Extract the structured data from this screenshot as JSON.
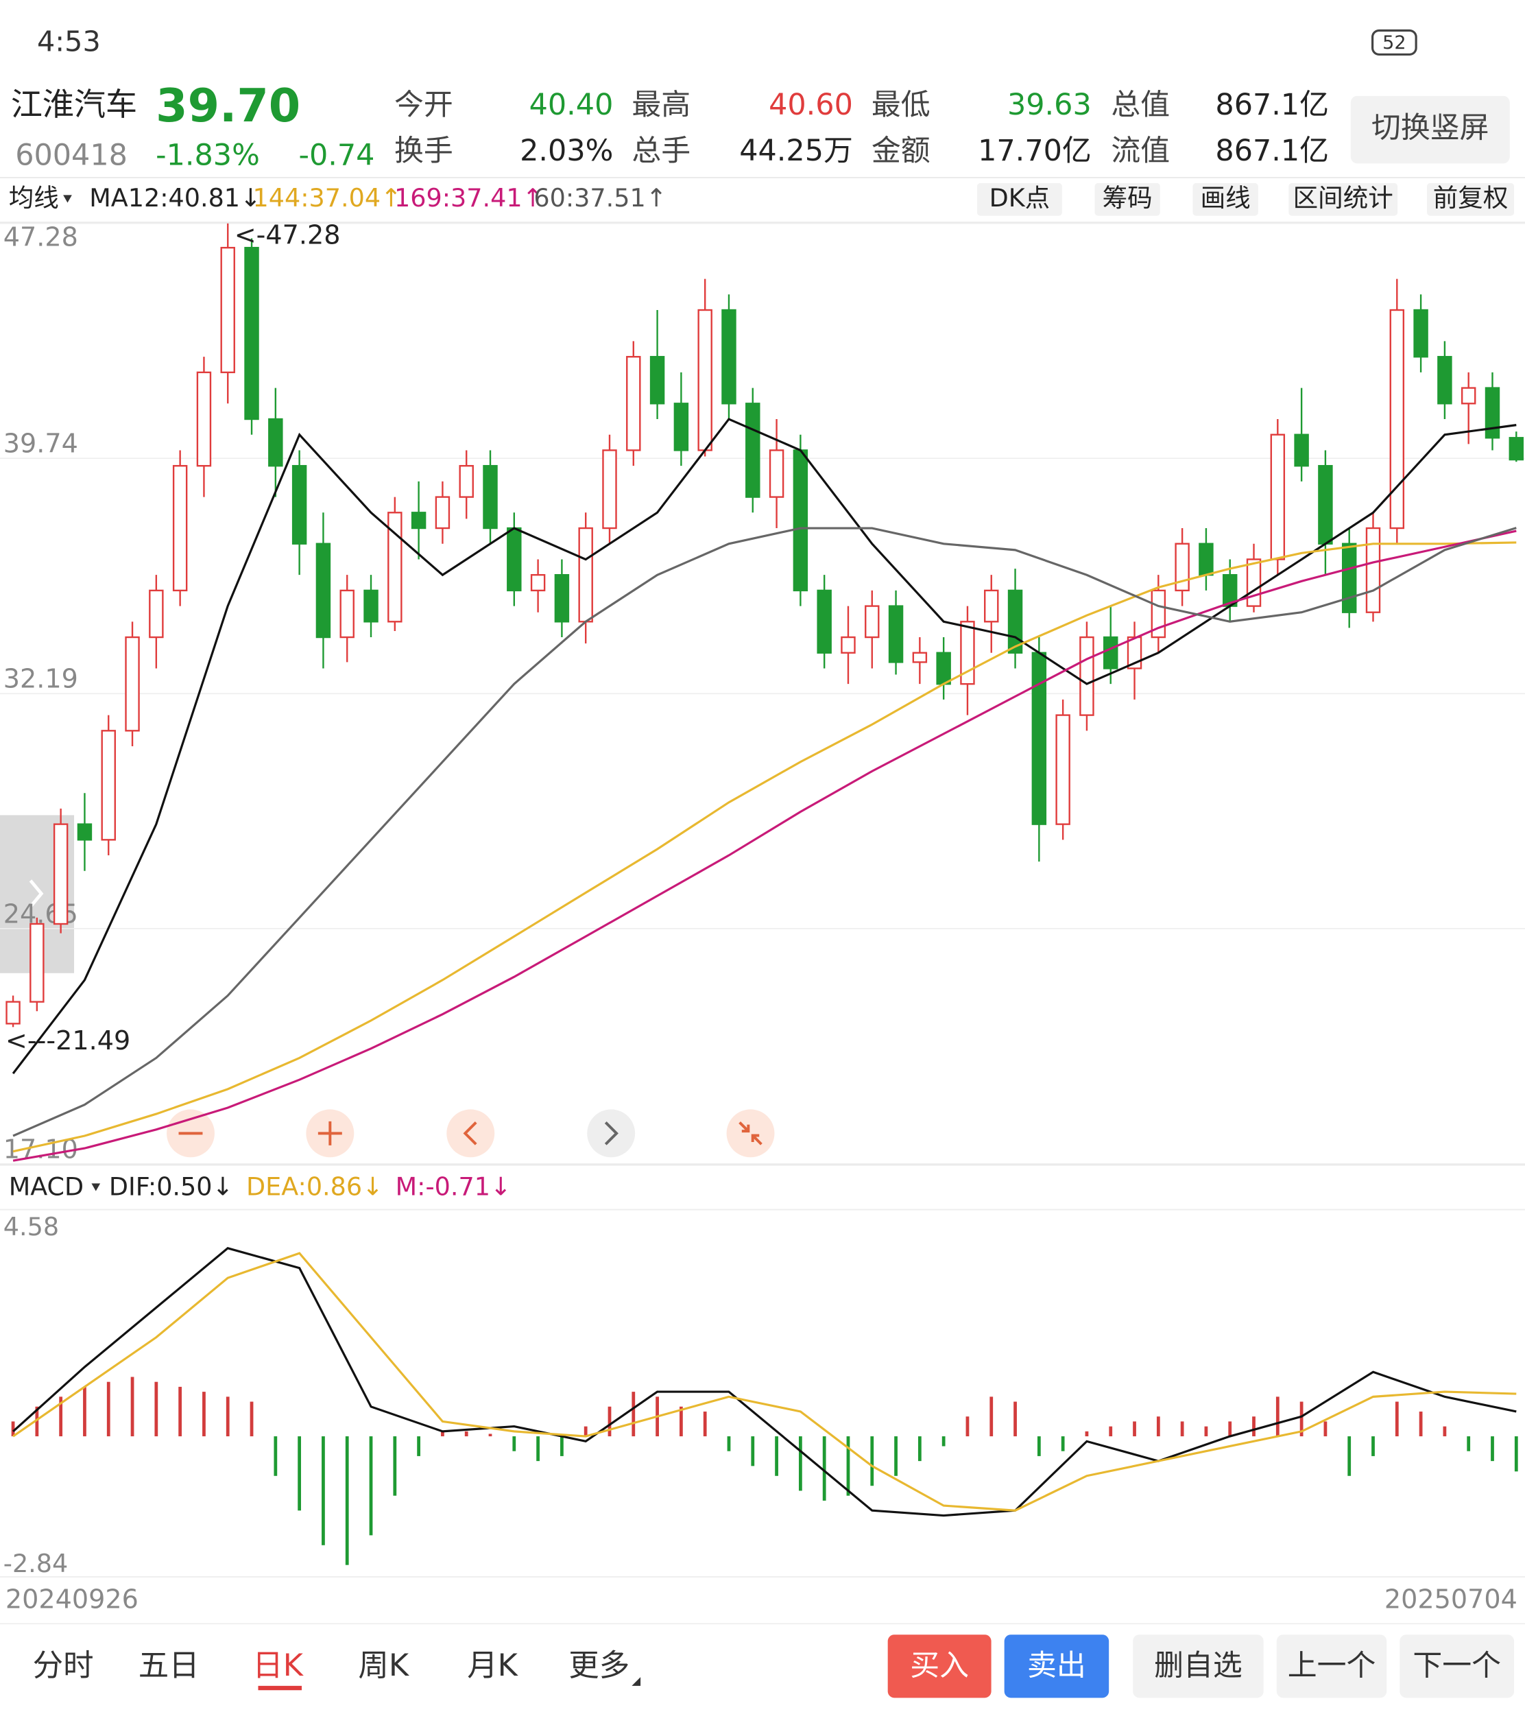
{
  "status": {
    "time": "4:53",
    "battery": "52"
  },
  "quote": {
    "name": "江淮汽车",
    "price": "39.70",
    "code": "600418",
    "change_pct": "-1.83%",
    "change": "-0.74",
    "row1": [
      {
        "label": "今开",
        "value": "40.40"
      },
      {
        "label": "最高",
        "value": "40.60"
      },
      {
        "label": "最低",
        "value": "39.63"
      },
      {
        "label": "总值",
        "value": "867.1亿"
      }
    ],
    "row2": [
      {
        "label": "换手",
        "value": "2.03%"
      },
      {
        "label": "总手",
        "value": "44.25万"
      },
      {
        "label": "金额",
        "value": "17.70亿"
      },
      {
        "label": "流值",
        "value": "867.1亿"
      }
    ],
    "switch_button": "切换竖屏"
  },
  "tools": [
    "DK点",
    "筹码",
    "画线",
    "区间统计",
    "前复权"
  ],
  "chart_data": [
    {
      "type": "candlestick",
      "selector": "均线",
      "legend": [
        "MA12:40.81↓",
        "144:37.04↑",
        "169:37.41↑",
        "60:37.51↑"
      ],
      "open": [
        21.6,
        22.3,
        24.8,
        28,
        27.5,
        31,
        34,
        35.5,
        39.5,
        42.5,
        46.5,
        41,
        39.5,
        37,
        34,
        35.5,
        34.5,
        38,
        37.5,
        38.5,
        39.5,
        37.5,
        35.5,
        36,
        34.5,
        37.5,
        40,
        43,
        41.5,
        40,
        44.5,
        41.5,
        38.5,
        40,
        35.5,
        33.5,
        34,
        35,
        33.2,
        33.5,
        32.5,
        34.5,
        35.5,
        33.5,
        28,
        31.5,
        34,
        33,
        34,
        35.5,
        37,
        36,
        35,
        36.5,
        40.5,
        39.5,
        37,
        34.8,
        37.5,
        44.5,
        43,
        41.5,
        42,
        40.4
      ],
      "high": [
        22.5,
        25,
        28.5,
        29,
        31.5,
        34.5,
        36,
        40,
        43,
        47.28,
        46.8,
        42,
        40,
        38,
        36,
        36,
        38.5,
        39,
        39,
        40,
        40,
        38,
        36.5,
        36.5,
        38,
        40.5,
        43.5,
        44.5,
        42.5,
        45.5,
        45,
        42,
        41,
        40.5,
        36,
        35,
        35.5,
        35.5,
        34,
        34,
        35,
        36,
        36.2,
        34,
        32,
        34.5,
        35,
        34.5,
        36,
        37.5,
        37.5,
        36.5,
        37,
        41,
        42,
        40,
        37.5,
        38,
        45.5,
        45,
        43.5,
        42.5,
        42.5,
        40.6
      ],
      "low": [
        21.49,
        22,
        24.5,
        26.5,
        27,
        30.5,
        33,
        35,
        38.5,
        41.5,
        40.5,
        38.5,
        36,
        33,
        33.2,
        34,
        34.2,
        36.5,
        37,
        37.8,
        37,
        35,
        34.8,
        34,
        33.8,
        37,
        39.5,
        41,
        39.5,
        39.8,
        41,
        38,
        37.5,
        35,
        33,
        32.5,
        33,
        32.8,
        32.5,
        32,
        31.5,
        33.5,
        33,
        26.8,
        27.5,
        31,
        32.5,
        32,
        33.5,
        35,
        35.5,
        34.5,
        34.8,
        36,
        39,
        36,
        34.3,
        34.5,
        37,
        42.5,
        41,
        40.2,
        40,
        39.63
      ],
      "close": [
        22.3,
        24.8,
        28,
        27.5,
        31,
        34,
        35.5,
        39.5,
        42.5,
        46.5,
        41,
        39.5,
        37,
        34,
        35.5,
        34.5,
        38,
        37.5,
        38.5,
        39.5,
        37.5,
        35.5,
        36,
        34.5,
        37.5,
        40,
        43,
        41.5,
        40,
        44.5,
        41.5,
        38.5,
        40,
        35.5,
        33.5,
        34,
        35,
        33.2,
        33.5,
        32.5,
        34.5,
        35.5,
        33.5,
        28,
        31.5,
        34,
        33,
        34,
        35.5,
        37,
        36,
        35,
        36.5,
        40.5,
        39.5,
        37,
        34.8,
        37.5,
        44.5,
        43,
        41.5,
        42,
        40.4,
        39.7
      ],
      "up_color": "#e03c3c",
      "down_color": "#1e9a32",
      "ma_x": [
        0,
        3,
        6,
        9,
        12,
        15,
        18,
        21,
        24,
        27,
        30,
        33,
        36,
        39,
        42,
        45,
        48,
        51,
        54,
        57,
        60,
        63
      ],
      "ma": [
        {
          "color": "#111111",
          "values": [
            20,
            23,
            28,
            35,
            40.5,
            38,
            36,
            37.5,
            36.5,
            38,
            41,
            40,
            37,
            34.5,
            34,
            32.5,
            33.5,
            35,
            36.5,
            38,
            40.5,
            40.81
          ]
        },
        {
          "color": "#e8b830",
          "values": [
            17.5,
            18,
            18.7,
            19.5,
            20.5,
            21.7,
            23,
            24.4,
            25.8,
            27.2,
            28.7,
            30,
            31.2,
            32.5,
            33.7,
            34.7,
            35.6,
            36.2,
            36.7,
            37,
            37,
            37.04
          ]
        },
        {
          "color": "#c81a78",
          "values": [
            17.2,
            17.6,
            18.2,
            18.9,
            19.8,
            20.8,
            21.9,
            23.1,
            24.4,
            25.7,
            27,
            28.4,
            29.7,
            30.9,
            32.1,
            33.3,
            34.3,
            35.1,
            35.8,
            36.4,
            36.9,
            37.41
          ]
        },
        {
          "color": "#666666",
          "values": [
            18,
            19,
            20.5,
            22.5,
            25,
            27.5,
            30,
            32.5,
            34.5,
            36,
            37,
            37.5,
            37.5,
            37,
            36.8,
            36,
            35,
            34.5,
            34.8,
            35.5,
            36.8,
            37.51
          ]
        }
      ],
      "ylim": [
        17.1,
        47.28
      ],
      "yticks": [
        47.28,
        39.74,
        32.19,
        24.65,
        {
          "value": 17.1,
          "label": "17.10"
        }
      ],
      "grid": true,
      "annotations": [
        "<-47.28",
        "<---21.49"
      ]
    },
    {
      "type": "macd",
      "selector": "MACD",
      "legend": [
        "DIF:0.50↓",
        "DEA:0.86↓",
        "M:-0.71↓"
      ],
      "histogram": [
        0.3,
        0.6,
        0.8,
        1.0,
        1.1,
        1.2,
        1.1,
        1.0,
        0.9,
        0.8,
        0.7,
        -0.8,
        -1.5,
        -2.2,
        -2.6,
        -2.0,
        -1.2,
        -0.4,
        0.1,
        0.1,
        0.05,
        -0.3,
        -0.5,
        -0.4,
        0.2,
        0.6,
        0.9,
        0.8,
        0.6,
        0.5,
        -0.3,
        -0.6,
        -0.8,
        -1.1,
        -1.3,
        -1.2,
        -1.0,
        -0.8,
        -0.5,
        -0.2,
        0.4,
        0.8,
        0.7,
        -0.4,
        -0.3,
        0.1,
        0.2,
        0.3,
        0.4,
        0.3,
        0.2,
        0.3,
        0.4,
        0.8,
        0.7,
        0.3,
        -0.8,
        -0.4,
        0.7,
        0.5,
        0.2,
        -0.3,
        -0.5,
        -0.71
      ],
      "line_x": [
        0,
        3,
        6,
        9,
        12,
        15,
        18,
        21,
        24,
        27,
        30,
        33,
        36,
        39,
        42,
        45,
        48,
        51,
        54,
        57,
        60,
        63
      ],
      "dif": {
        "color": "#111111",
        "values": [
          0.1,
          1.4,
          2.6,
          3.8,
          3.4,
          0.6,
          0.1,
          0.2,
          -0.1,
          0.9,
          0.9,
          -0.3,
          -1.5,
          -1.6,
          -1.5,
          -0.1,
          -0.5,
          0.0,
          0.4,
          1.3,
          0.8,
          0.5
        ]
      },
      "dea": {
        "color": "#e8b830",
        "values": [
          0.0,
          1.0,
          2.0,
          3.2,
          3.7,
          2.0,
          0.3,
          0.1,
          0.0,
          0.4,
          0.8,
          0.5,
          -0.6,
          -1.4,
          -1.5,
          -0.8,
          -0.5,
          -0.2,
          0.1,
          0.8,
          0.9,
          0.86
        ]
      },
      "up_color": "#d23c3c",
      "down_color": "#1e9a32",
      "ylim": [
        -2.84,
        4.58
      ],
      "yticks": [
        4.58,
        -2.84
      ],
      "date_labels": [
        "20240926",
        "20250704"
      ]
    }
  ],
  "tabs": [
    "分时",
    "五日",
    "日K",
    "周K",
    "月K",
    "更多"
  ],
  "actions": [
    "买入",
    "卖出",
    "删自选",
    "上一个",
    "下一个"
  ]
}
